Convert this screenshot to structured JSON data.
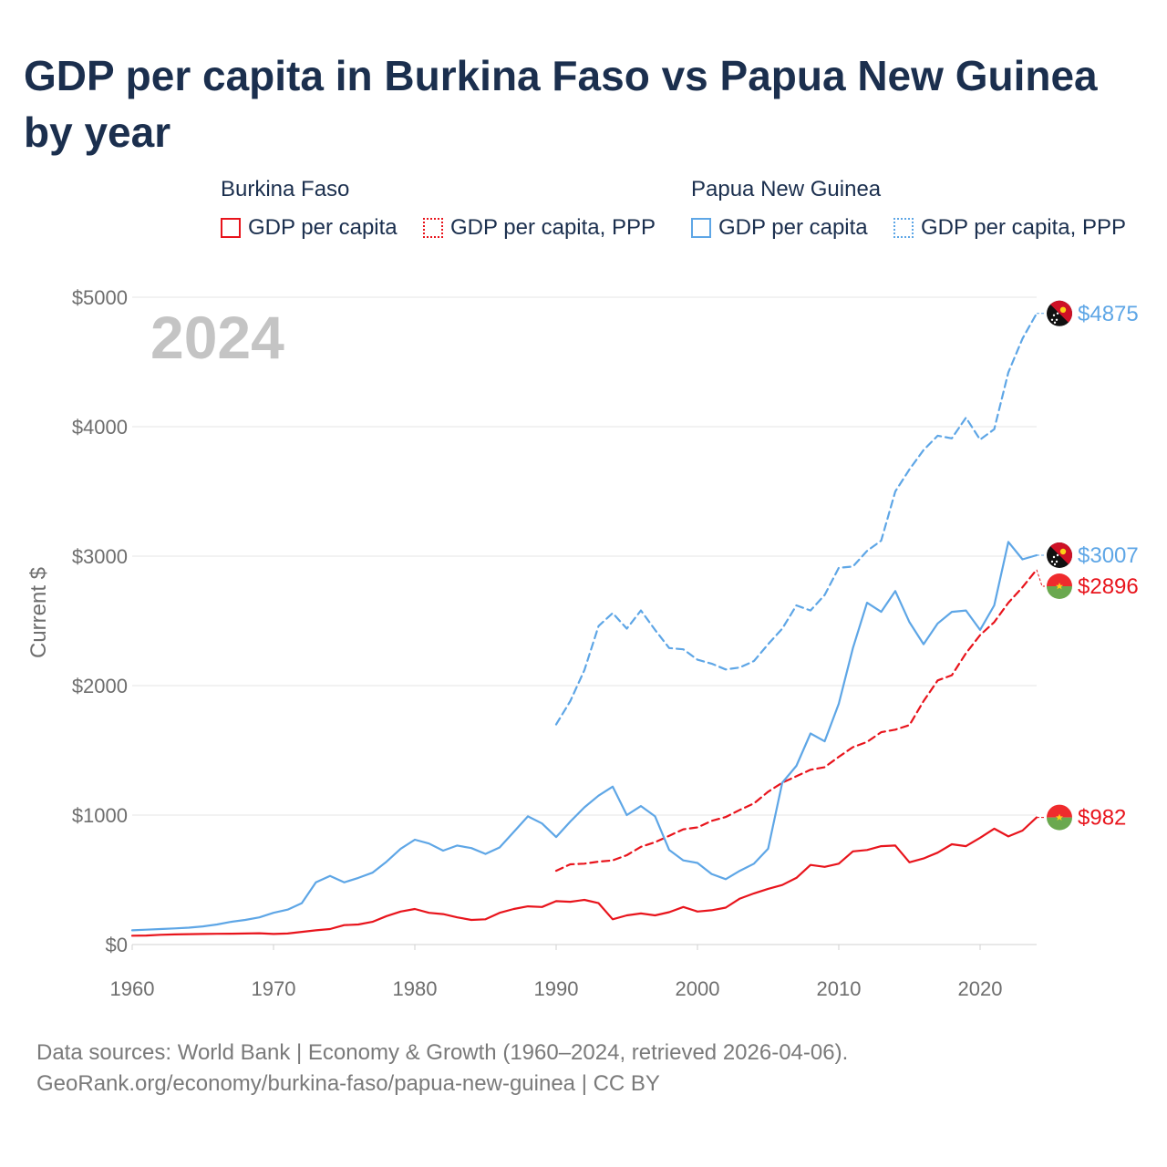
{
  "title": "GDP per capita in Burkina Faso vs Papua New Guinea by year",
  "legend": {
    "groups": [
      {
        "name": "Burkina Faso",
        "items": [
          "GDP per capita",
          "GDP per capita, PPP"
        ]
      },
      {
        "name": "Papua New Guinea",
        "items": [
          "GDP per capita",
          "GDP per capita, PPP"
        ]
      }
    ]
  },
  "footer": {
    "line1": "Data sources: World Bank | Economy & Growth (1960–2024, retrieved 2026-04-06).",
    "line2": "GeoRank.org/economy/burkina-faso/papua-new-guinea | CC BY"
  },
  "colors": {
    "burkina": "#e8141c",
    "png": "#5ea6e6",
    "grid": "#e6e6e6",
    "axis_text": "#6e6e6e"
  },
  "chart_data": {
    "type": "line",
    "ylabel": "Current $",
    "xlabel": "",
    "year_label": "2024",
    "xlim": [
      1960,
      2024
    ],
    "ylim": [
      0,
      5000
    ],
    "x_ticks": [
      1960,
      1970,
      1980,
      1990,
      2000,
      2010,
      2020
    ],
    "y_ticks": [
      0,
      1000,
      2000,
      3000,
      4000,
      5000
    ],
    "y_tick_labels": [
      "$0",
      "$1000",
      "$2000",
      "$3000",
      "$4000",
      "$5000"
    ],
    "series": [
      {
        "name": "Burkina Faso GDP per capita",
        "country": "burkina",
        "style": "solid",
        "end_label": "$982",
        "start": 1960,
        "values": [
          68,
          70,
          75,
          78,
          80,
          82,
          83,
          84,
          85,
          87,
          82,
          85,
          98,
          110,
          120,
          150,
          155,
          175,
          220,
          255,
          275,
          245,
          235,
          210,
          190,
          195,
          245,
          275,
          295,
          290,
          335,
          330,
          345,
          320,
          195,
          225,
          240,
          225,
          250,
          290,
          255,
          265,
          285,
          355,
          395,
          430,
          460,
          515,
          615,
          600,
          625,
          720,
          730,
          760,
          765,
          635,
          665,
          710,
          775,
          760,
          825,
          895,
          835,
          880,
          982
        ]
      },
      {
        "name": "Burkina Faso GDP per capita, PPP",
        "country": "burkina",
        "style": "dashed",
        "end_label": "$2896",
        "start": 1990,
        "values": [
          570,
          620,
          625,
          640,
          650,
          690,
          755,
          790,
          840,
          890,
          905,
          955,
          985,
          1040,
          1090,
          1180,
          1250,
          1300,
          1350,
          1370,
          1450,
          1525,
          1565,
          1640,
          1660,
          1695,
          1880,
          2040,
          2080,
          2250,
          2390,
          2490,
          2640,
          2760,
          2896
        ]
      },
      {
        "name": "Papua New Guinea GDP per capita",
        "country": "png",
        "style": "solid",
        "end_label": "$3007",
        "start": 1960,
        "values": [
          110,
          115,
          120,
          125,
          130,
          140,
          155,
          175,
          190,
          210,
          245,
          270,
          320,
          480,
          530,
          480,
          515,
          555,
          640,
          740,
          810,
          780,
          725,
          765,
          745,
          700,
          750,
          870,
          990,
          935,
          830,
          950,
          1060,
          1150,
          1220,
          1000,
          1070,
          990,
          730,
          650,
          630,
          545,
          505,
          570,
          625,
          740,
          1250,
          1380,
          1630,
          1570,
          1860,
          2290,
          2640,
          2570,
          2730,
          2490,
          2320,
          2480,
          2570,
          2580,
          2430,
          2620,
          3110,
          2975,
          3007
        ]
      },
      {
        "name": "Papua New Guinea GDP per capita, PPP",
        "country": "png",
        "style": "dashed",
        "end_label": "$4875",
        "start": 1990,
        "values": [
          1700,
          1880,
          2120,
          2460,
          2560,
          2440,
          2580,
          2430,
          2290,
          2280,
          2200,
          2170,
          2125,
          2140,
          2190,
          2320,
          2440,
          2620,
          2580,
          2700,
          2910,
          2920,
          3040,
          3120,
          3500,
          3670,
          3820,
          3930,
          3910,
          4070,
          3900,
          3980,
          4420,
          4680,
          4875
        ]
      }
    ]
  }
}
